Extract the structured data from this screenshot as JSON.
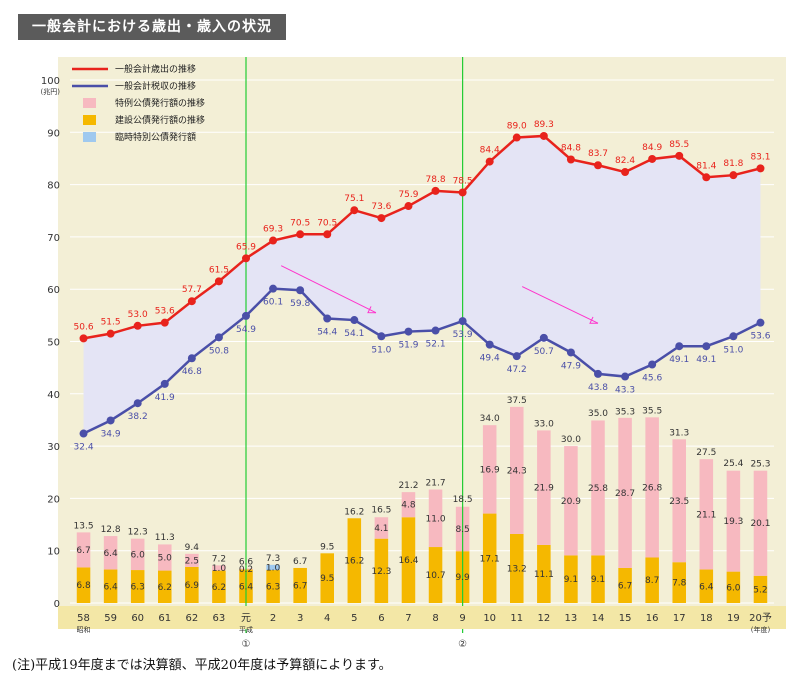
{
  "page_title": "一般会計における歳出・歳入の状況",
  "note": "(注)平成19年度までは決算額、平成20年度は予算額によります。",
  "markers": [
    "①",
    "②"
  ],
  "colors": {
    "expenditure": "#e8231c",
    "tax": "#4a4fa8",
    "special_bond": "#f7b9c0",
    "construction_bond": "#f5b800",
    "temporary_bond": "#9fc9ef",
    "background": "#f3efd6",
    "gap_fill": "#e4e4f5",
    "marker_line": "#22cc33",
    "trend_arrow": "#ff33cc"
  },
  "chart_data": {
    "type": "bar+line",
    "ylabel": "(兆円)",
    "xlabel": "(年度)",
    "ylim": [
      0,
      100
    ],
    "yticks": [
      0,
      10,
      20,
      30,
      40,
      50,
      60,
      70,
      80,
      90,
      100
    ],
    "grid": true,
    "legend_position": "top-left",
    "legend": [
      {
        "key": "expenditure",
        "label": "一般会計歳出の推移",
        "kind": "line"
      },
      {
        "key": "tax",
        "label": "一般会計税収の推移",
        "kind": "line"
      },
      {
        "key": "special_bond",
        "label": "特例公債発行額の推移",
        "kind": "box"
      },
      {
        "key": "construction_bond",
        "label": "建設公債発行額の推移",
        "kind": "box"
      },
      {
        "key": "temporary_bond",
        "label": "臨時特別公債発行額",
        "kind": "box"
      }
    ],
    "categories": [
      "58",
      "59",
      "60",
      "61",
      "62",
      "63",
      "元",
      "2",
      "3",
      "4",
      "5",
      "6",
      "7",
      "8",
      "9",
      "10",
      "11",
      "12",
      "13",
      "14",
      "15",
      "16",
      "17",
      "18",
      "19",
      "20"
    ],
    "category_sublabels": {
      "58": "昭和",
      "元": "平成",
      "20": "(年度)"
    },
    "category_suffix": {
      "20": "予"
    },
    "marker_positions": [
      "元",
      "9"
    ],
    "expenditure": [
      50.6,
      51.5,
      53.0,
      53.6,
      57.7,
      61.5,
      65.9,
      69.3,
      70.5,
      70.5,
      75.1,
      73.6,
      75.9,
      78.8,
      78.5,
      84.4,
      89.0,
      89.3,
      84.8,
      83.7,
      82.4,
      84.9,
      85.5,
      81.4,
      81.8,
      83.1
    ],
    "tax_revenue": [
      32.4,
      34.9,
      38.2,
      41.9,
      46.8,
      50.8,
      54.9,
      60.1,
      59.8,
      54.4,
      54.1,
      51.0,
      51.9,
      52.1,
      53.9,
      49.4,
      47.2,
      50.7,
      47.9,
      43.8,
      43.3,
      45.6,
      49.1,
      49.1,
      51.0,
      53.6
    ],
    "construction_bonds": [
      6.8,
      6.4,
      6.3,
      6.2,
      6.9,
      6.2,
      6.4,
      6.3,
      6.7,
      9.5,
      16.2,
      12.3,
      16.4,
      10.7,
      9.9,
      17.1,
      13.2,
      11.1,
      9.1,
      9.1,
      6.7,
      8.7,
      7.8,
      6.4,
      6.0,
      5.2
    ],
    "special_bonds": [
      6.7,
      6.4,
      6.0,
      5.0,
      2.5,
      1.0,
      0.2,
      0,
      0,
      0,
      0,
      4.1,
      4.8,
      11.0,
      8.5,
      16.9,
      24.3,
      21.9,
      20.9,
      25.8,
      28.7,
      26.8,
      23.5,
      21.1,
      19.3,
      20.1
    ],
    "temporary_bonds": [
      0,
      0,
      0,
      0,
      0,
      0,
      0,
      1.0,
      0,
      0,
      0,
      0,
      0,
      0,
      0,
      0,
      0,
      0,
      0,
      0,
      0,
      0,
      0,
      0,
      0,
      0
    ],
    "bond_totals": [
      13.5,
      12.8,
      12.3,
      11.3,
      9.4,
      7.2,
      6.6,
      7.3,
      6.7,
      9.5,
      16.2,
      16.5,
      21.2,
      21.7,
      18.5,
      34.0,
      37.5,
      33.0,
      30.0,
      35.0,
      35.3,
      35.5,
      31.3,
      27.5,
      25.4,
      25.3
    ]
  }
}
